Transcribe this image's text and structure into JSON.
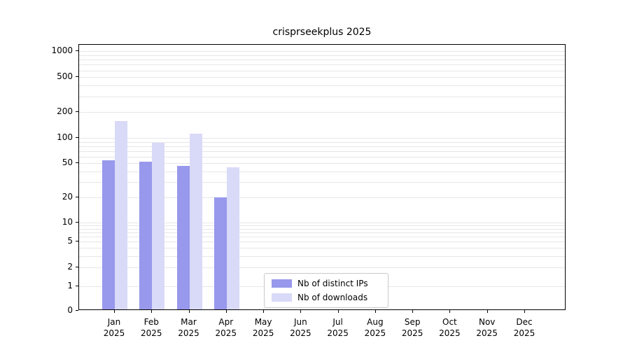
{
  "chart_data": {
    "type": "bar",
    "title": "crisprseekplus 2025",
    "categories": [
      "Jan 2025",
      "Feb 2025",
      "Mar 2025",
      "Apr 2025",
      "May 2025",
      "Jun 2025",
      "Jul 2025",
      "Aug 2025",
      "Sep 2025",
      "Oct 2025",
      "Nov 2025",
      "Dec 2025"
    ],
    "series": [
      {
        "name": "Nb of distinct IPs",
        "color": "#9898ec",
        "values": [
          52,
          50,
          45,
          19,
          0,
          0,
          0,
          0,
          0,
          0,
          0,
          0
        ]
      },
      {
        "name": "Nb of downloads",
        "color": "#d9d9f8",
        "values": [
          150,
          85,
          108,
          43,
          0,
          0,
          0,
          0,
          0,
          0,
          0,
          0
        ]
      }
    ],
    "y_axis": {
      "scale": "log",
      "ticks": [
        0,
        1,
        2,
        5,
        10,
        20,
        50,
        100,
        200,
        500,
        1000
      ],
      "gridlines": [
        1,
        2,
        3,
        4,
        5,
        6,
        7,
        8,
        9,
        10,
        20,
        30,
        40,
        50,
        60,
        70,
        80,
        90,
        100,
        200,
        300,
        400,
        500,
        600,
        700,
        800,
        900,
        1000
      ],
      "ylim": [
        0,
        1000
      ]
    },
    "legend": {
      "position": "bottom-center"
    },
    "grid": true,
    "colors": {
      "grid": "#e7e7e7",
      "axis": "#000000",
      "background": "#ffffff"
    }
  }
}
